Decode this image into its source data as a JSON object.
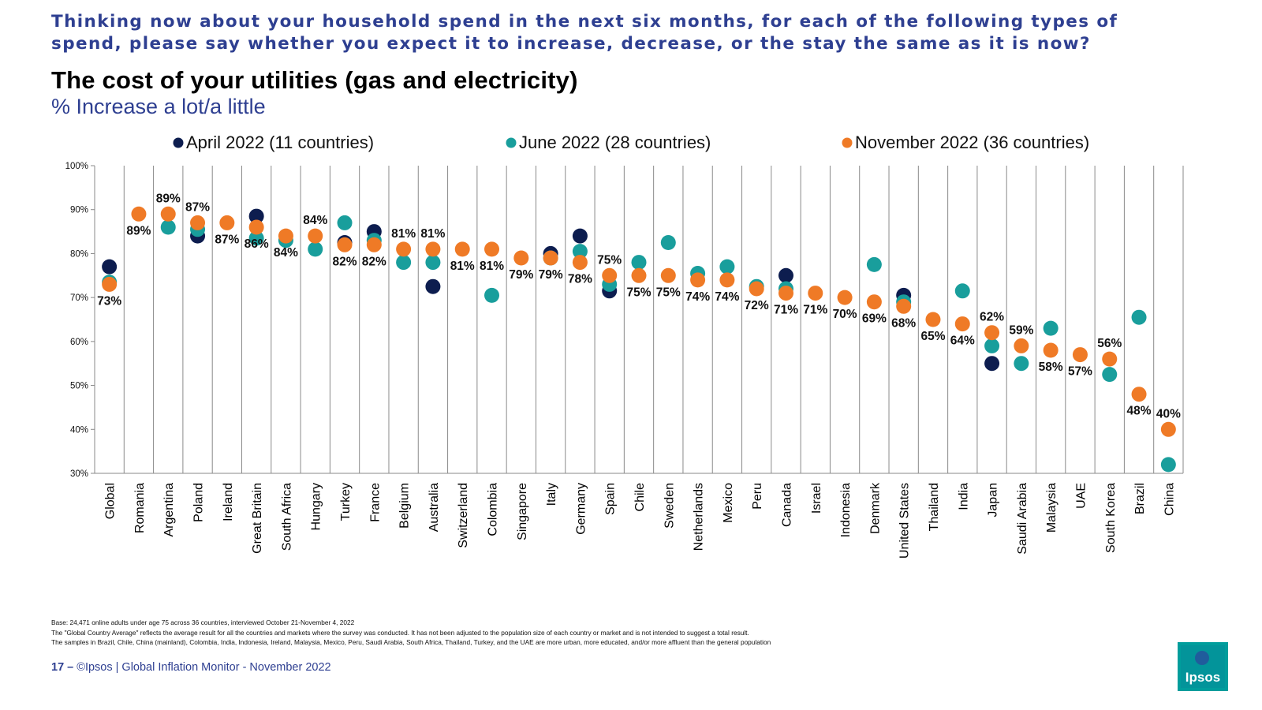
{
  "header": {
    "question": "Thinking now about your household spend in the next six months, for each of the following types of spend, please say whether you expect it to increase, decrease, or the stay the same as it is now?",
    "title": "The cost of your utilities (gas and electricity)",
    "subtitle": "% Increase a lot/a little"
  },
  "chart_data": {
    "type": "scatter",
    "title": "The cost of your utilities (gas and electricity)",
    "subtitle": "% Increase a lot/a little",
    "ylim": [
      30,
      100
    ],
    "yticks": [
      "30%",
      "40%",
      "50%",
      "60%",
      "70%",
      "80%",
      "90%",
      "100%"
    ],
    "legend_position": "top",
    "grid": "vertical separators between countries",
    "categories": [
      "Global",
      "Romania",
      "Argentina",
      "Poland",
      "Ireland",
      "Great Britain",
      "South Africa",
      "Hungary",
      "Turkey",
      "France",
      "Belgium",
      "Australia",
      "Switzerland",
      "Colombia",
      "Singapore",
      "Italy",
      "Germany",
      "Spain",
      "Chile",
      "Sweden",
      "Netherlands",
      "Mexico",
      "Peru",
      "Canada",
      "Israel",
      "Indonesia",
      "Denmark",
      "United States",
      "Thailand",
      "India",
      "Japan",
      "Saudi Arabia",
      "Malaysia",
      "UAE",
      "South Korea",
      "Brazil",
      "China"
    ],
    "series": [
      {
        "name": "April 2022 (11 countries)",
        "color": "#0d1d4f",
        "values": [
          77,
          null,
          null,
          84,
          null,
          88.5,
          null,
          null,
          82.5,
          85,
          null,
          72.5,
          null,
          null,
          null,
          80,
          84,
          71.5,
          null,
          null,
          null,
          null,
          null,
          75,
          null,
          null,
          null,
          70.5,
          null,
          null,
          55,
          null,
          null,
          null,
          null,
          null,
          null
        ]
      },
      {
        "name": "June 2022 (28 countries)",
        "color": "#199e9c",
        "values": [
          73.5,
          null,
          86,
          85.5,
          null,
          83.5,
          83,
          81,
          87,
          83,
          78,
          78,
          null,
          70.5,
          null,
          79,
          80.5,
          73,
          78,
          82.5,
          75.5,
          77,
          72.5,
          72,
          null,
          null,
          77.5,
          69,
          null,
          71.5,
          59,
          55,
          63,
          null,
          52.5,
          65.5,
          32
        ]
      },
      {
        "name": "November 2022 (36 countries)",
        "color": "#ef7a26",
        "values": [
          73,
          89,
          89,
          87,
          87,
          86,
          84,
          84,
          82,
          82,
          81,
          81,
          81,
          81,
          79,
          79,
          78,
          75,
          75,
          75,
          74,
          74,
          72,
          71,
          71,
          70,
          69,
          68,
          65,
          64,
          62,
          59,
          58,
          57,
          56,
          48,
          40
        ]
      }
    ],
    "data_labels": [
      "73%",
      "89%",
      "89%",
      "87%",
      "87%",
      "86%",
      "84%",
      "84%",
      "82%",
      "82%",
      "81%",
      "81%",
      "81%",
      "81%",
      "79%",
      "79%",
      "78%",
      "75%",
      "75%",
      "75%",
      "74%",
      "74%",
      "72%",
      "71%",
      "71%",
      "70%",
      "69%",
      "68%",
      "65%",
      "64%",
      "62%",
      "59%",
      "58%",
      "57%",
      "56%",
      "48%",
      "40%"
    ]
  },
  "notes": [
    "Base: 24,471 online adults under age 75 across 36 countries, interviewed October 21-November 4, 2022",
    "The \"Global Country Average\" reflects the average result for all the countries and markets where the survey was conducted. It has not been adjusted to the population size of each country or market and is not intended to suggest a total result.",
    "The samples in Brazil, Chile, China (mainland), Colombia, India, Indonesia, Ireland, Malaysia, Mexico, Peru, Saudi Arabia, South Africa, Thailand, Turkey, and the UAE are more urban, more educated, and/or more affluent than the general population"
  ],
  "footer": {
    "page": "17 –",
    "copyright": "©Ipsos | Global Inflation Monitor - November 2022"
  },
  "logo": {
    "text": "Ipsos",
    "color": "#009d9c"
  }
}
